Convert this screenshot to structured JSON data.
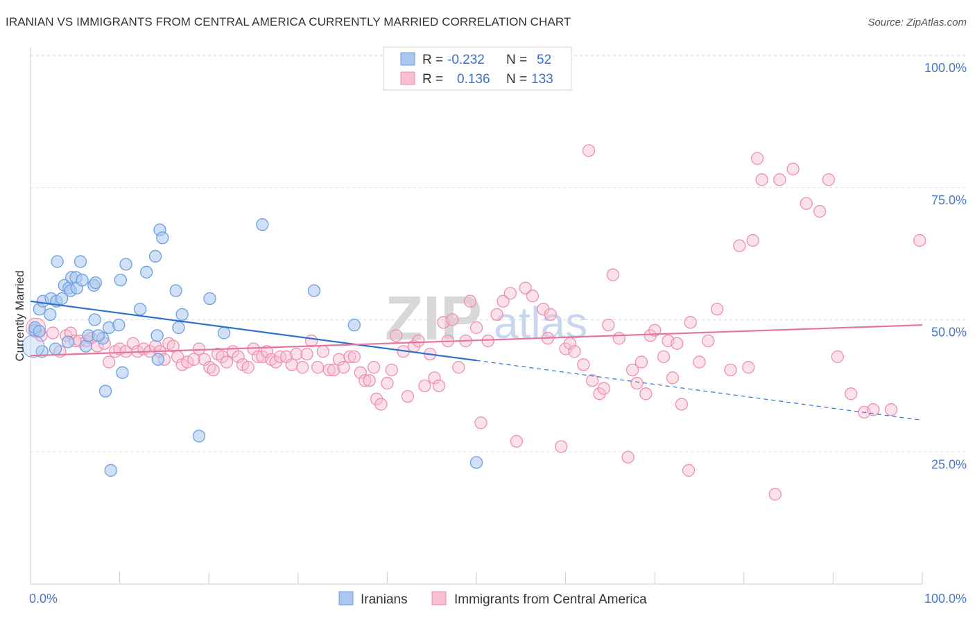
{
  "title": "IRANIAN VS IMMIGRANTS FROM CENTRAL AMERICA CURRENTLY MARRIED CORRELATION CHART",
  "source": "Source: ZipAtlas.com",
  "watermark": {
    "zip": "ZIP",
    "atlas": "atlas"
  },
  "colors": {
    "blue_fill": "#a9c8f0",
    "blue_stroke": "#6d9ee0",
    "blue_line": "#2f6fd0",
    "pink_fill": "#f7bfd0",
    "pink_stroke": "#ee8fae",
    "pink_line": "#e8739d",
    "grid": "#dcdcdc",
    "axis_text": "#4a78c7"
  },
  "legend": {
    "rows": [
      {
        "r_label": "R =",
        "r_value": "-0.232",
        "n_label": "N =",
        "n_value": "52"
      },
      {
        "r_label": "R =",
        "r_value": "0.136",
        "n_label": "N =",
        "n_value": "133"
      }
    ]
  },
  "bottom_legend": [
    "Iranians",
    "Immigrants from Central America"
  ],
  "chart_data": {
    "type": "scatter",
    "ylabel": "Currently Married",
    "xlim": [
      0,
      100
    ],
    "ylim": [
      0,
      100
    ],
    "x_tick_labels": [
      "0.0%",
      "100.0%"
    ],
    "y_tick_labels": [
      "25.0%",
      "50.0%",
      "75.0%",
      "100.0%"
    ],
    "y_ticks": [
      25,
      50,
      75,
      100
    ],
    "grid": true,
    "series": [
      {
        "name": "Iranians",
        "color": "blue",
        "R": -0.232,
        "N": 52,
        "trend": {
          "x0": 0,
          "y0": 53.5,
          "x1": 50,
          "y1": 42.3,
          "dash_to_x": 100,
          "dash_to_y": 31
        },
        "points": [
          [
            0.5,
            48
          ],
          [
            1.3,
            44
          ],
          [
            1.0,
            52
          ],
          [
            1.4,
            53.5
          ],
          [
            2.2,
            51
          ],
          [
            2.3,
            54
          ],
          [
            2.9,
            53.5
          ],
          [
            3.5,
            54
          ],
          [
            3.0,
            61
          ],
          [
            3.8,
            56.5
          ],
          [
            4.3,
            56
          ],
          [
            4.6,
            58
          ],
          [
            5.1,
            58
          ],
          [
            4.5,
            55.5
          ],
          [
            5.2,
            56
          ],
          [
            5.6,
            61
          ],
          [
            5.8,
            57.5
          ],
          [
            7.2,
            50
          ],
          [
            6.2,
            45
          ],
          [
            6.5,
            47
          ],
          [
            7.1,
            56.5
          ],
          [
            7.3,
            57
          ],
          [
            8.1,
            46.5
          ],
          [
            8.4,
            36.5
          ],
          [
            8.8,
            48.5
          ],
          [
            9.0,
            21.5
          ],
          [
            9.9,
            49
          ],
          [
            10.1,
            57.5
          ],
          [
            10.3,
            40
          ],
          [
            10.7,
            60.5
          ],
          [
            12.3,
            52
          ],
          [
            13.0,
            59
          ],
          [
            14.0,
            62
          ],
          [
            14.2,
            47
          ],
          [
            14.3,
            42.5
          ],
          [
            14.5,
            67
          ],
          [
            14.8,
            65.5
          ],
          [
            16.3,
            55.5
          ],
          [
            16.6,
            48.5
          ],
          [
            17.0,
            51
          ],
          [
            18.9,
            28
          ],
          [
            20.1,
            54
          ],
          [
            21.7,
            47.5
          ],
          [
            26.0,
            68
          ],
          [
            31.8,
            55.5
          ],
          [
            36.3,
            49
          ],
          [
            50.0,
            23
          ],
          [
            0.5,
            48.5
          ],
          [
            1.0,
            47.8
          ],
          [
            2.8,
            44.5
          ],
          [
            7.6,
            47
          ],
          [
            4.2,
            45.8
          ]
        ]
      },
      {
        "name": "Immigrants from Central America",
        "color": "pink",
        "R": 0.136,
        "N": 133,
        "trend": {
          "x0": 0,
          "y0": 43.2,
          "x1": 100,
          "y1": 49
        }
      }
    ]
  }
}
